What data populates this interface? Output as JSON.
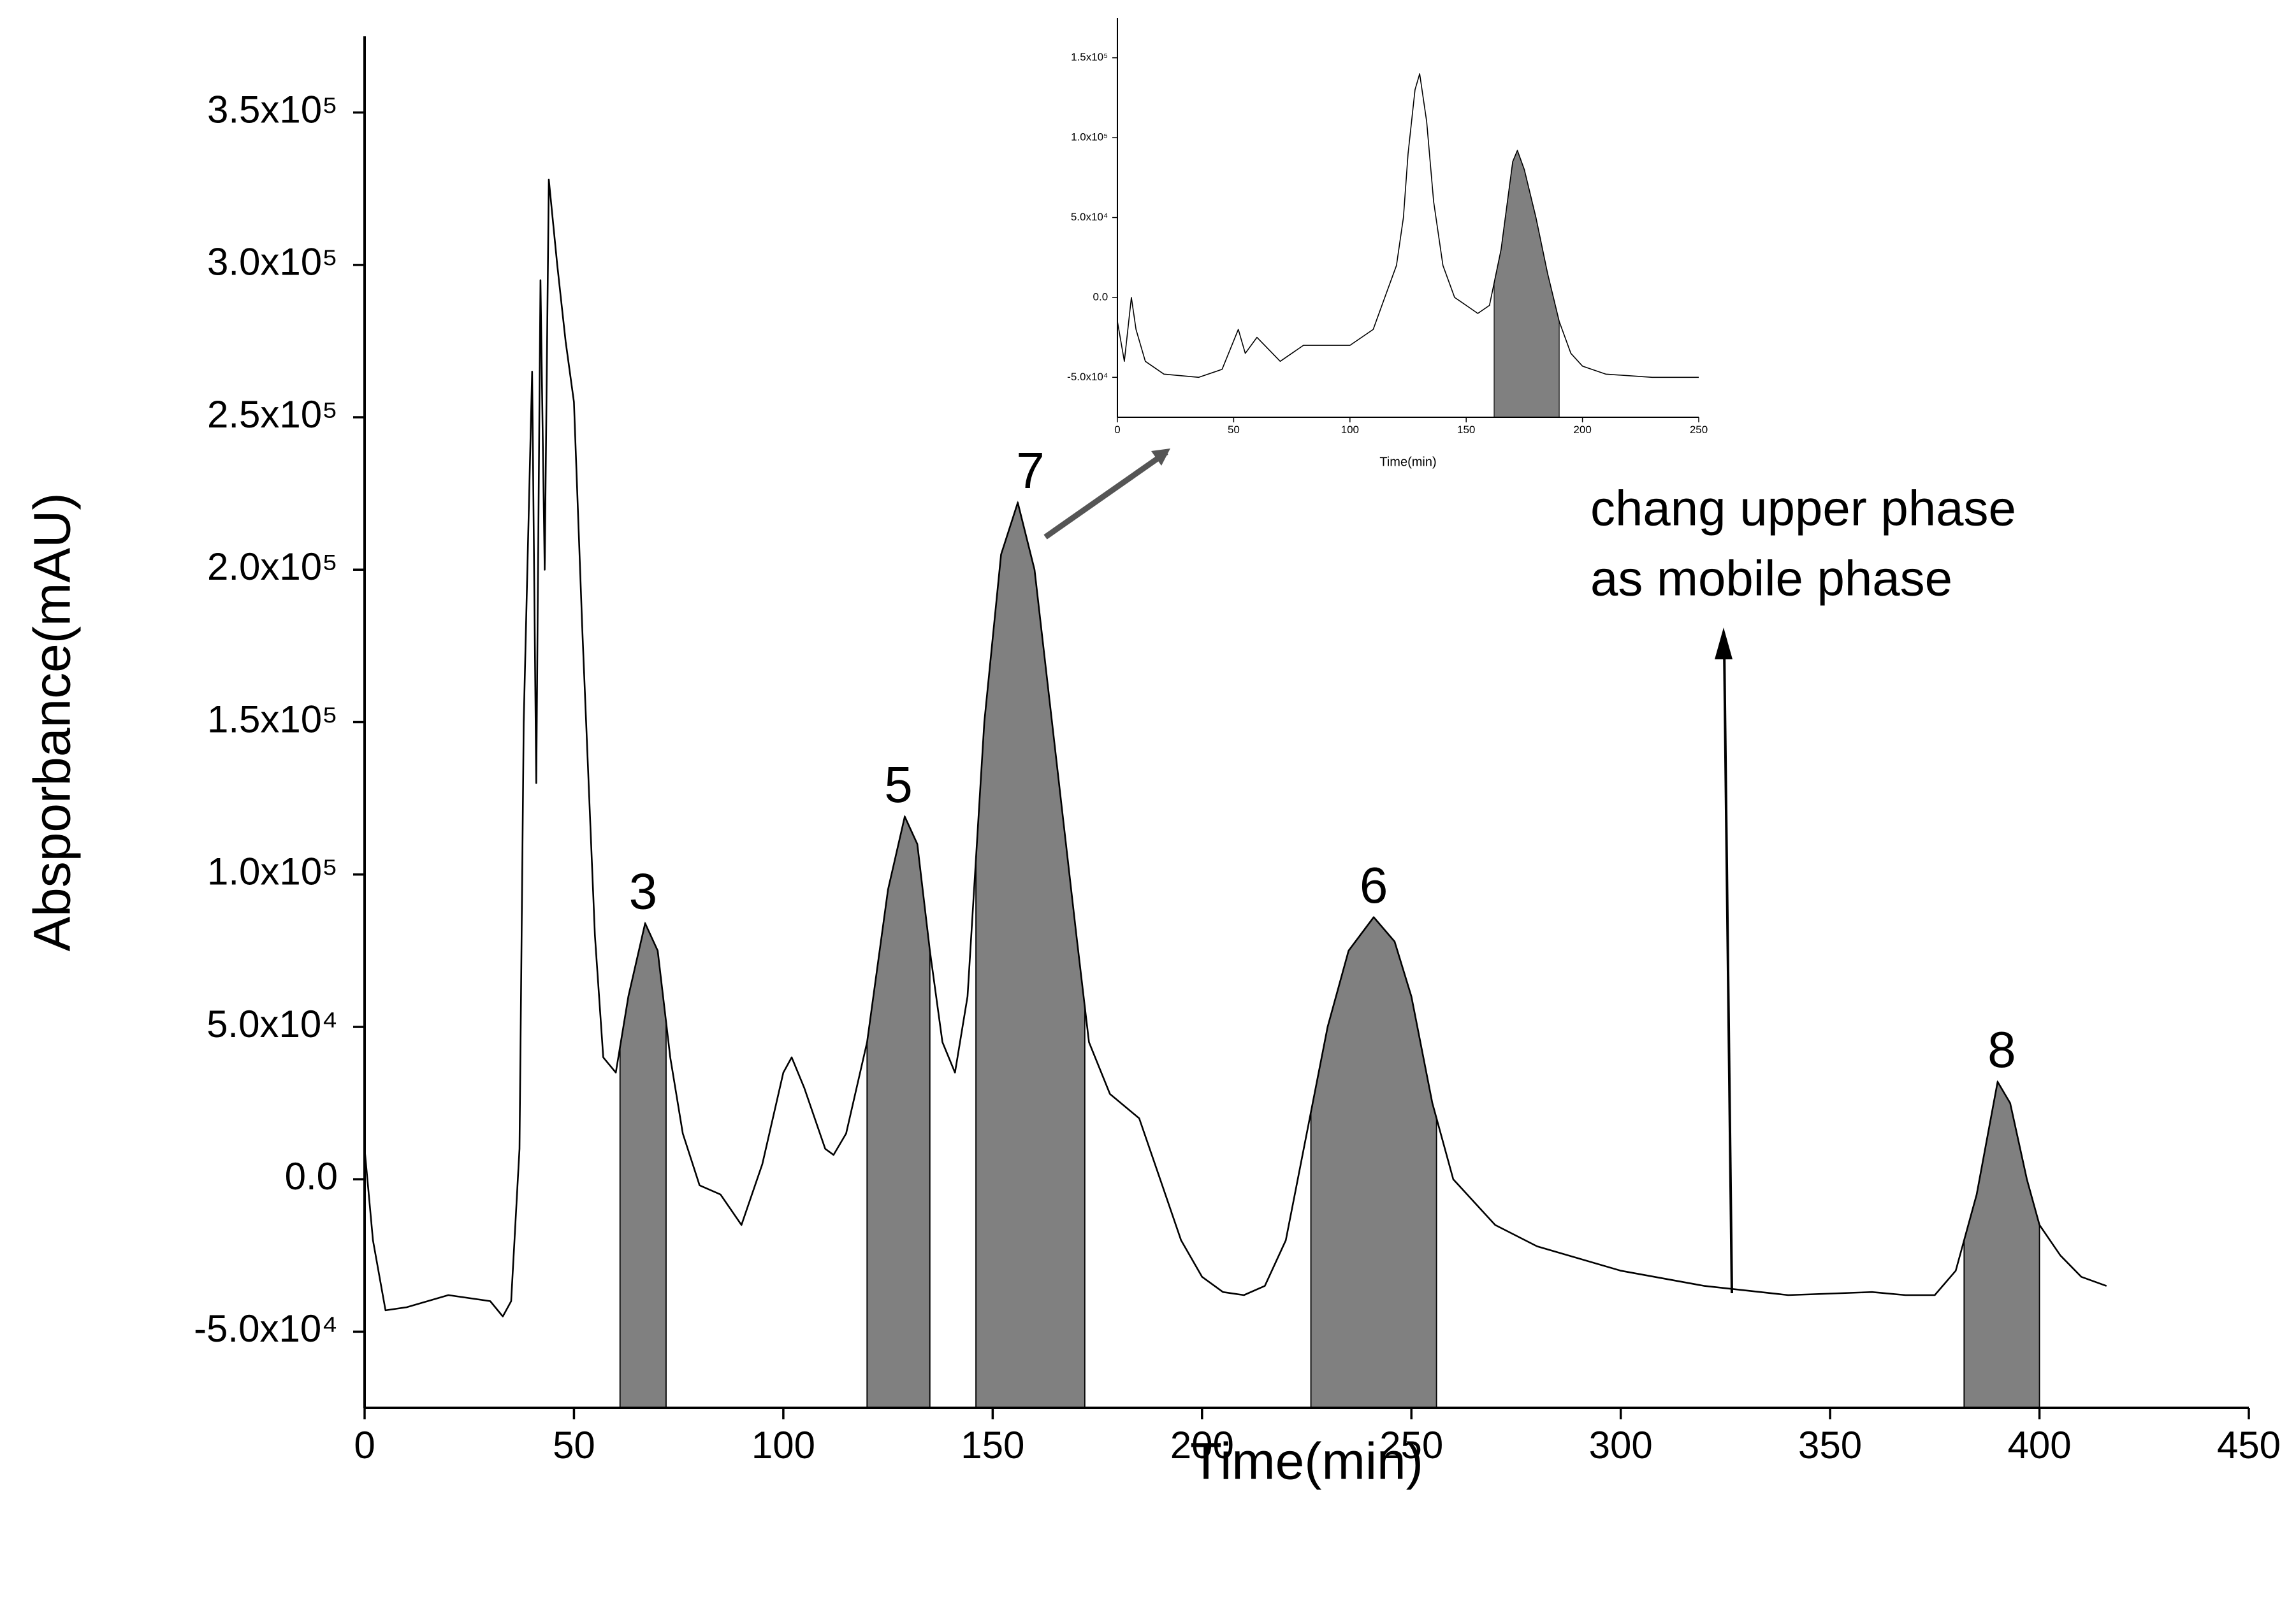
{
  "chart_data": [
    {
      "type": "line",
      "color": "#000000",
      "shade_color": "#808080",
      "x_label": "Time(min)",
      "y_label": "Absporbance(mAU)",
      "x": [
        0,
        2,
        5,
        10,
        20,
        30,
        33,
        35,
        37,
        38,
        40,
        41,
        42,
        43,
        44,
        46,
        48,
        50,
        52,
        55,
        57,
        60,
        63,
        67,
        70,
        73,
        76,
        80,
        85,
        90,
        95,
        100,
        102,
        105,
        110,
        112,
        115,
        120,
        125,
        129,
        132,
        135,
        138,
        141,
        144,
        148,
        152,
        156,
        160,
        165,
        170,
        173,
        178,
        185,
        190,
        195,
        200,
        205,
        210,
        215,
        220,
        225,
        230,
        235,
        241,
        246,
        250,
        255,
        260,
        270,
        280,
        300,
        320,
        340,
        360,
        368,
        375,
        380,
        385,
        390,
        393,
        397,
        400,
        405,
        410,
        416
      ],
      "y": [
        10000,
        -20000,
        -43000,
        -42000,
        -38000,
        -40000,
        -45000,
        -40000,
        10000,
        150000,
        265000,
        130000,
        295000,
        200000,
        328000,
        300000,
        275000,
        255000,
        180000,
        80000,
        40000,
        35000,
        60000,
        84000,
        75000,
        40000,
        15000,
        -2000,
        -5000,
        -15000,
        5000,
        35000,
        40000,
        30000,
        10000,
        8000,
        15000,
        45000,
        95000,
        119000,
        110000,
        75000,
        45000,
        35000,
        60000,
        150000,
        205000,
        222000,
        200000,
        140000,
        80000,
        45000,
        28000,
        20000,
        0,
        -20000,
        -32000,
        -37000,
        -38000,
        -35000,
        -20000,
        15000,
        50000,
        75000,
        86000,
        78000,
        60000,
        25000,
        0,
        -15000,
        -22000,
        -30000,
        -35000,
        -38000,
        -37000,
        -38000,
        -38000,
        -30000,
        -5000,
        32000,
        25000,
        0,
        -15000,
        -25000,
        -32000,
        -35000
      ],
      "fractions": [
        {
          "label": "3",
          "range": [
            61,
            72
          ]
        },
        {
          "label": "5",
          "range": [
            120,
            135
          ]
        },
        {
          "label": "7",
          "range": [
            146,
            172
          ]
        },
        {
          "label": "6",
          "range": [
            226,
            256
          ]
        },
        {
          "label": "8",
          "range": [
            382,
            400
          ]
        }
      ],
      "annotation": [
        "chang upper phase",
        "as mobile phase"
      ],
      "xlim": [
        0,
        450
      ],
      "xticks": [
        0,
        50,
        100,
        150,
        200,
        250,
        300,
        350,
        400,
        450
      ],
      "ylim": [
        -75000,
        375000
      ],
      "yticks": [
        {
          "value": -50000,
          "label": "-5.0x10⁴"
        },
        {
          "value": 0,
          "label": "0.0"
        },
        {
          "value": 50000,
          "label": "5.0x10⁴"
        },
        {
          "value": 100000,
          "label": "1.0x10⁵"
        },
        {
          "value": 150000,
          "label": "1.5x10⁵"
        },
        {
          "value": 200000,
          "label": "2.0x10⁵"
        },
        {
          "value": 250000,
          "label": "2.5x10⁵"
        },
        {
          "value": 300000,
          "label": "3.0x10⁵"
        },
        {
          "value": 350000,
          "label": "3.5x10⁵"
        }
      ]
    },
    {
      "type": "line",
      "color": "#000000",
      "shade_color": "#808080",
      "x_label": "Time(min)",
      "x": [
        0,
        3,
        6,
        8,
        12,
        20,
        35,
        45,
        52,
        55,
        60,
        70,
        80,
        90,
        100,
        110,
        115,
        120,
        123,
        125,
        128,
        130,
        133,
        136,
        140,
        145,
        150,
        155,
        160,
        165,
        170,
        172,
        175,
        180,
        185,
        190,
        195,
        200,
        210,
        230,
        250
      ],
      "y": [
        -15000,
        -40000,
        0,
        -20000,
        -40000,
        -48000,
        -50000,
        -45000,
        -20000,
        -35000,
        -25000,
        -40000,
        -30000,
        -30000,
        -30000,
        -20000,
        0,
        20000,
        50000,
        90000,
        130000,
        140000,
        110000,
        60000,
        20000,
        0,
        -5000,
        -10000,
        -5000,
        30000,
        85000,
        92000,
        80000,
        50000,
        15000,
        -15000,
        -35000,
        -43000,
        -48000,
        -50000,
        -50000
      ],
      "fractions": [
        {
          "range": [
            162,
            190
          ]
        }
      ],
      "xlim": [
        0,
        250
      ],
      "xticks": [
        0,
        50,
        100,
        150,
        200,
        250
      ],
      "ylim": [
        -75000,
        175000
      ],
      "yticks": [
        {
          "value": -50000,
          "label": "-5.0x10⁴"
        },
        {
          "value": 0,
          "label": "0.0"
        },
        {
          "value": 50000,
          "label": "5.0x10⁴"
        },
        {
          "value": 100000,
          "label": "1.0x10⁵"
        },
        {
          "value": 150000,
          "label": "1.5x10⁵"
        }
      ]
    }
  ]
}
